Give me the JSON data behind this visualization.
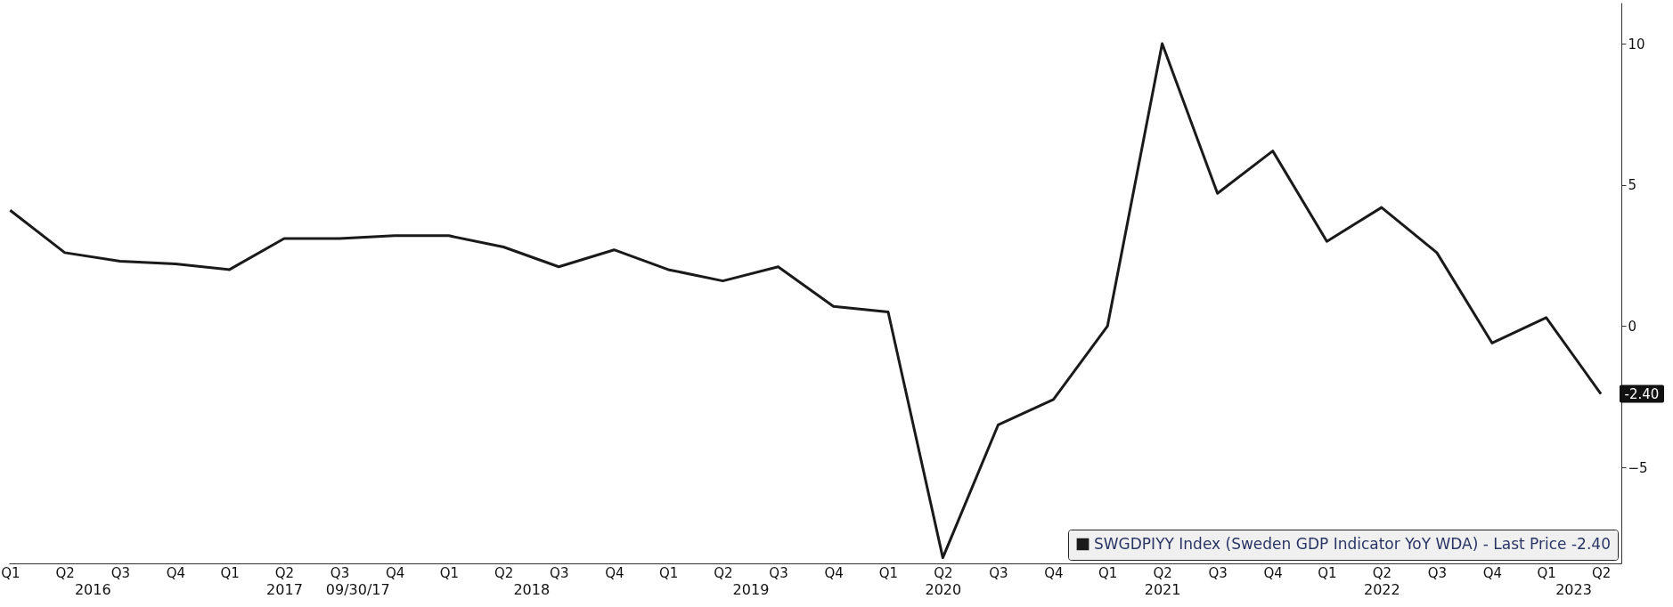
{
  "chart_data": {
    "type": "line",
    "x": [
      "2016-03-31",
      "2016-06-30",
      "2016-09-30",
      "2016-12-31",
      "2017-03-31",
      "2017-06-30",
      "2017-09-30",
      "2017-12-31",
      "2018-03-31",
      "2018-06-30",
      "2018-09-30",
      "2018-12-31",
      "2019-03-31",
      "2019-06-30",
      "2019-09-30",
      "2019-12-31",
      "2020-03-31",
      "2020-06-30",
      "2020-09-30",
      "2020-12-31",
      "2021-03-31",
      "2021-06-30",
      "2021-09-30",
      "2021-12-31",
      "2022-03-31",
      "2022-06-30",
      "2022-09-30",
      "2022-12-31",
      "2023-03-31",
      "2023-06-30"
    ],
    "series": [
      {
        "name": "SWGDPIYY Index (Sweden GDP Indicator YoY WDA) - Last Price -2.40",
        "color": "#1a1a1a",
        "values": [
          4.1,
          2.6,
          2.3,
          2.2,
          2.0,
          3.1,
          3.1,
          3.2,
          3.2,
          2.8,
          2.1,
          2.7,
          2.0,
          1.6,
          2.1,
          0.7,
          0.5,
          -8.2,
          -3.5,
          -2.6,
          0,
          10.0,
          4.7,
          6.2,
          3.0,
          4.2,
          2.6,
          -0.6,
          0.3,
          -2.4
        ],
        "value_labels": [
          null,
          null,
          null,
          null,
          null,
          null,
          null,
          null,
          null,
          null,
          null,
          null,
          null,
          null,
          null,
          null,
          null,
          null,
          null,
          null,
          null,
          null,
          null,
          null,
          null,
          null,
          null,
          null,
          null,
          "-2.40"
        ]
      }
    ],
    "xlim": [
      "2016-03-29",
      "2023-08-03"
    ],
    "xticks": [
      {
        "value": "2016-03-31",
        "label": "Q1"
      },
      {
        "value": "2016-06-30",
        "label": "Q2"
      },
      {
        "value": "2016-09-30",
        "label": "Q3"
      },
      {
        "value": "2016-12-31",
        "label": "Q4"
      },
      {
        "value": "2017-03-31",
        "label": "Q1"
      },
      {
        "value": "2017-06-30",
        "label": "Q2"
      },
      {
        "value": "2017-09-30",
        "label": "Q3"
      },
      {
        "value": "2017-12-31",
        "label": "Q4"
      },
      {
        "value": "2018-03-31",
        "label": "Q1"
      },
      {
        "value": "2018-06-30",
        "label": "Q2"
      },
      {
        "value": "2018-09-30",
        "label": "Q3"
      },
      {
        "value": "2018-12-31",
        "label": "Q4"
      },
      {
        "value": "2019-03-31",
        "label": "Q1"
      },
      {
        "value": "2019-06-30",
        "label": "Q2"
      },
      {
        "value": "2019-09-30",
        "label": "Q3"
      },
      {
        "value": "2019-12-31",
        "label": "Q4"
      },
      {
        "value": "2020-03-31",
        "label": "Q1"
      },
      {
        "value": "2020-06-30",
        "label": "Q2"
      },
      {
        "value": "2020-09-30",
        "label": "Q3"
      },
      {
        "value": "2020-12-31",
        "label": "Q4"
      },
      {
        "value": "2021-03-31",
        "label": "Q1"
      },
      {
        "value": "2021-06-30",
        "label": "Q2"
      },
      {
        "value": "2021-09-30",
        "label": "Q3"
      },
      {
        "value": "2021-12-31",
        "label": "Q4"
      },
      {
        "value": "2022-03-31",
        "label": "Q1"
      },
      {
        "value": "2022-06-30",
        "label": "Q2"
      },
      {
        "value": "2022-09-30",
        "label": "Q3"
      },
      {
        "value": "2022-12-31",
        "label": "Q4"
      },
      {
        "value": "2023-03-31",
        "label": "Q1"
      },
      {
        "value": "2023-06-30",
        "label": "Q2"
      }
    ],
    "ylim": [
      -8.4,
      11.45
    ],
    "yticks": [
      -5,
      0,
      5,
      10
    ],
    "x2lim": [
      "2016-03-29",
      "2023-08-03"
    ],
    "x2ticks": [
      {
        "value": "2016-08-15",
        "label": "2016"
      },
      {
        "value": "2017-06-30",
        "label": "2017"
      },
      {
        "value": "2017-10-30",
        "label": "09/30/17"
      },
      {
        "value": "2018-08-15",
        "label": "2018"
      },
      {
        "value": "2019-08-15",
        "label": "2019"
      },
      {
        "value": "2020-06-30",
        "label": "2020"
      },
      {
        "value": "2021-06-30",
        "label": "2021"
      },
      {
        "value": "2022-06-30",
        "label": "2022"
      },
      {
        "value": "2023-05-15",
        "label": "2023"
      }
    ],
    "legend": "bottom right",
    "grid": false,
    "marker": "none",
    "line_style": "solid"
  }
}
